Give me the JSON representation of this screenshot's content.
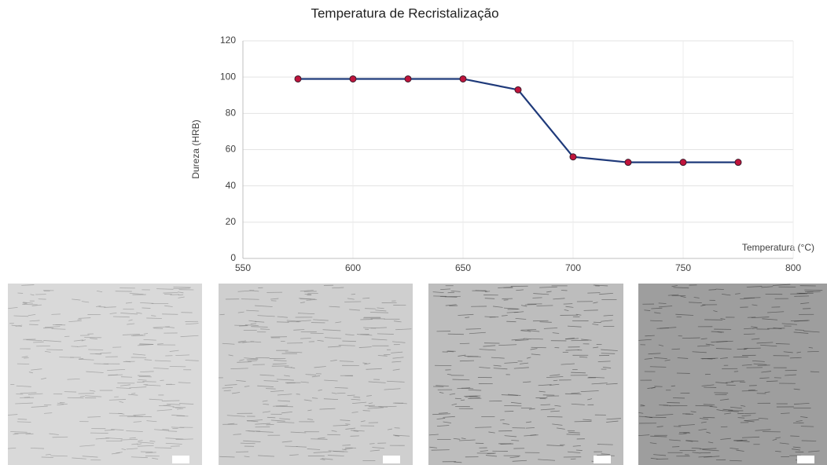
{
  "chart_data": {
    "type": "line",
    "title": "Temperatura de Recristalização",
    "x_label": "Temperatura (°C)",
    "y_label": "Dureza (HRB)",
    "x": [
      575,
      600,
      625,
      650,
      675,
      700,
      725,
      750,
      775
    ],
    "values": [
      99,
      99,
      99,
      99,
      93,
      56,
      53,
      53,
      53
    ],
    "color": "#1f3a7a",
    "marker_color": "#c0143c",
    "xlim": [
      550,
      800
    ],
    "xticks": [
      550,
      600,
      650,
      700,
      750,
      800
    ],
    "ylim": [
      0,
      120
    ],
    "yticks": [
      0,
      20,
      40,
      60,
      80,
      100,
      120
    ],
    "grid": true
  }
}
